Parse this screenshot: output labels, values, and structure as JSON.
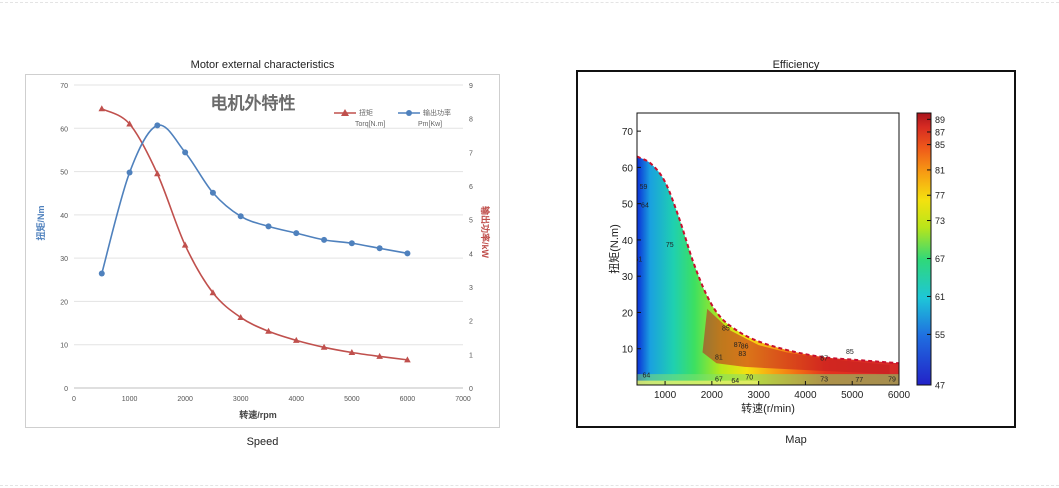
{
  "left_panel": {
    "title": "Motor external characteristics",
    "caption": "Speed"
  },
  "right_panel": {
    "title": "Efficiency",
    "caption": "Map"
  },
  "chart_data": [
    {
      "type": "line",
      "title": "电机外特性",
      "xlabel": "转速/rpm",
      "ylabel_left": "扭矩/Nm",
      "ylabel_right": "输出功率/kW",
      "xlim": [
        0,
        7000
      ],
      "xticks": [
        0,
        1000,
        2000,
        3000,
        4000,
        5000,
        6000,
        7000
      ],
      "ylim_left": [
        0,
        70
      ],
      "yticks_left": [
        0,
        10,
        20,
        30,
        40,
        50,
        60,
        70
      ],
      "ylim_right": [
        0,
        9
      ],
      "yticks_right": [
        0,
        1,
        2,
        3,
        4,
        5,
        6,
        7,
        8,
        9
      ],
      "grid": "horizontal",
      "legend_position": "top-right",
      "x": [
        500,
        1000,
        1500,
        2000,
        2500,
        3000,
        3500,
        4000,
        4500,
        5000,
        5500,
        6000
      ],
      "series": [
        {
          "name": "扭矩",
          "unit_label": "Torq[N.m]",
          "axis": "left",
          "color": "#c0504d",
          "marker": "triangle",
          "values": [
            64.5,
            61.0,
            49.5,
            33.0,
            22.0,
            16.3,
            13.1,
            11.0,
            9.4,
            8.2,
            7.3,
            6.5
          ]
        },
        {
          "name": "输出功率",
          "unit_label": "Pm[Kw]",
          "axis": "right",
          "color": "#4f81bd",
          "marker": "circle",
          "values": [
            3.4,
            6.4,
            7.8,
            7.0,
            5.8,
            5.1,
            4.8,
            4.6,
            4.4,
            4.3,
            4.15,
            4.0
          ]
        }
      ]
    },
    {
      "type": "heatmap",
      "xlabel": "转速(r/min)",
      "ylabel": "扭矩(N.m)",
      "xlim": [
        400,
        6000
      ],
      "xticks": [
        1000,
        2000,
        3000,
        4000,
        5000,
        6000
      ],
      "ylim": [
        0,
        75
      ],
      "yticks": [
        10,
        20,
        30,
        40,
        50,
        60,
        70
      ],
      "colorbar_ticks": [
        47,
        55,
        61,
        67,
        73,
        77,
        81,
        85,
        87,
        89
      ],
      "colorbar_range": [
        47,
        90
      ],
      "boundary": {
        "speed": [
          400,
          700,
          1000,
          1300,
          1600,
          1900,
          2200,
          2600,
          3000,
          3500,
          4000,
          4500,
          5000,
          5500,
          6000
        ],
        "torque": [
          63,
          61,
          56,
          46,
          34,
          24.5,
          18.5,
          14.5,
          12,
          10,
          8.5,
          7.5,
          7,
          6.5,
          6
        ]
      },
      "contour_labels": [
        {
          "text": "59",
          "x": 540,
          "y": 54
        },
        {
          "text": "64",
          "x": 570,
          "y": 49
        },
        {
          "text": "75",
          "x": 1100,
          "y": 38
        },
        {
          "text": "61",
          "x": 430,
          "y": 34
        },
        {
          "text": "85",
          "x": 2300,
          "y": 15
        },
        {
          "text": "87",
          "x": 2550,
          "y": 10.5
        },
        {
          "text": "86",
          "x": 2700,
          "y": 10
        },
        {
          "text": "81",
          "x": 2150,
          "y": 7
        },
        {
          "text": "83",
          "x": 2650,
          "y": 8
        },
        {
          "text": "64",
          "x": 600,
          "y": 2
        },
        {
          "text": "67",
          "x": 2150,
          "y": 1
        },
        {
          "text": "64",
          "x": 2500,
          "y": 0.5
        },
        {
          "text": "70",
          "x": 2800,
          "y": 1.5
        },
        {
          "text": "73",
          "x": 4400,
          "y": 1
        },
        {
          "text": "77",
          "x": 5150,
          "y": 0.8
        },
        {
          "text": "87",
          "x": 4400,
          "y": 6.8
        },
        {
          "text": "85",
          "x": 4950,
          "y": 8.5
        },
        {
          "text": "79",
          "x": 5850,
          "y": 1
        }
      ]
    }
  ]
}
